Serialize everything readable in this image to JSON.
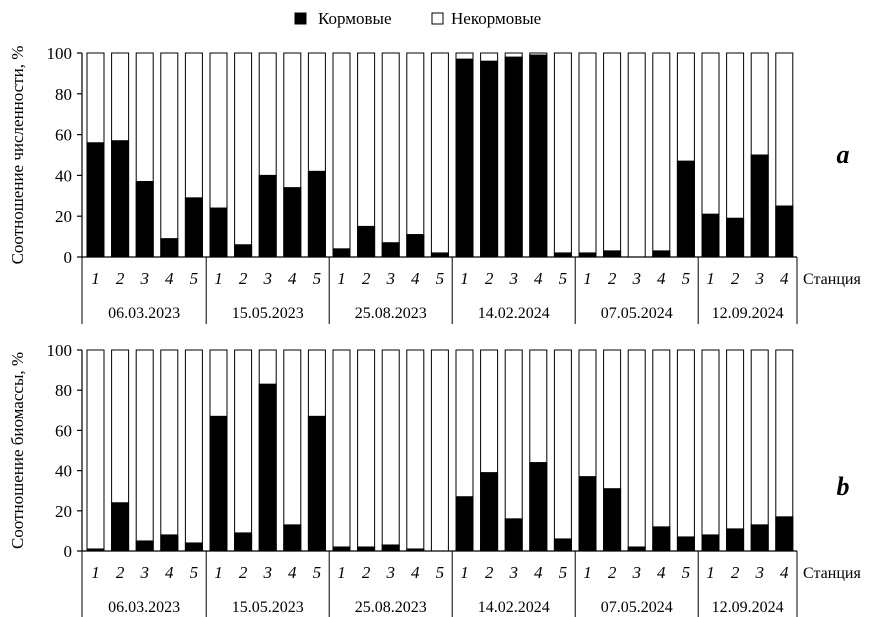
{
  "legend": {
    "feed": "Кормовые",
    "nonfeed": "Некормовые"
  },
  "chart_data": [
    {
      "type": "bar",
      "stacked": true,
      "panel_label": "a",
      "ylabel": "Соотношение численности, %",
      "xlabel": "Станция",
      "ylim": [
        0,
        100
      ],
      "yticks": [
        "0",
        "20",
        "40",
        "60",
        "80",
        "100"
      ],
      "groups": [
        {
          "date": "06.03.2023",
          "stations": [
            "1",
            "2",
            "3",
            "4",
            "5"
          ],
          "values": [
            56,
            57,
            37,
            9,
            29
          ]
        },
        {
          "date": "15.05.2023",
          "stations": [
            "1",
            "2",
            "3",
            "4",
            "5"
          ],
          "values": [
            24,
            6,
            40,
            34,
            42
          ]
        },
        {
          "date": "25.08.2023",
          "stations": [
            "1",
            "2",
            "3",
            "4",
            "5"
          ],
          "values": [
            4,
            15,
            7,
            11,
            2
          ]
        },
        {
          "date": "14.02.2024",
          "stations": [
            "1",
            "2",
            "3",
            "4",
            "5"
          ],
          "values": [
            97,
            96,
            98,
            99,
            2
          ]
        },
        {
          "date": "07.05.2024",
          "stations": [
            "1",
            "2",
            "3",
            "4",
            "5"
          ],
          "values": [
            2,
            3,
            0,
            3,
            47
          ]
        },
        {
          "date": "12.09.2024",
          "stations": [
            "1",
            "2",
            "3",
            "4"
          ],
          "values": [
            21,
            19,
            50,
            25
          ]
        }
      ],
      "series": [
        {
          "name": "Кормовые"
        },
        {
          "name": "Некормовые"
        }
      ]
    },
    {
      "type": "bar",
      "stacked": true,
      "panel_label": "b",
      "ylabel": "Соотношение биомассы, %",
      "xlabel": "Станция",
      "ylim": [
        0,
        100
      ],
      "yticks": [
        "0",
        "20",
        "40",
        "60",
        "80",
        "100"
      ],
      "groups": [
        {
          "date": "06.03.2023",
          "stations": [
            "1",
            "2",
            "3",
            "4",
            "5"
          ],
          "values": [
            1,
            24,
            5,
            8,
            4
          ]
        },
        {
          "date": "15.05.2023",
          "stations": [
            "1",
            "2",
            "3",
            "4",
            "5"
          ],
          "values": [
            67,
            9,
            83,
            13,
            67
          ]
        },
        {
          "date": "25.08.2023",
          "stations": [
            "1",
            "2",
            "3",
            "4",
            "5"
          ],
          "values": [
            2,
            2,
            3,
            1,
            0
          ]
        },
        {
          "date": "14.02.2024",
          "stations": [
            "1",
            "2",
            "3",
            "4",
            "5"
          ],
          "values": [
            27,
            39,
            16,
            44,
            6
          ]
        },
        {
          "date": "07.05.2024",
          "stations": [
            "1",
            "2",
            "3",
            "4",
            "5"
          ],
          "values": [
            37,
            31,
            2,
            12,
            7
          ]
        },
        {
          "date": "12.09.2024",
          "stations": [
            "1",
            "2",
            "3",
            "4"
          ],
          "values": [
            8,
            11,
            13,
            17
          ]
        }
      ],
      "series": [
        {
          "name": "Кормовые"
        },
        {
          "name": "Некормовые"
        }
      ]
    }
  ]
}
